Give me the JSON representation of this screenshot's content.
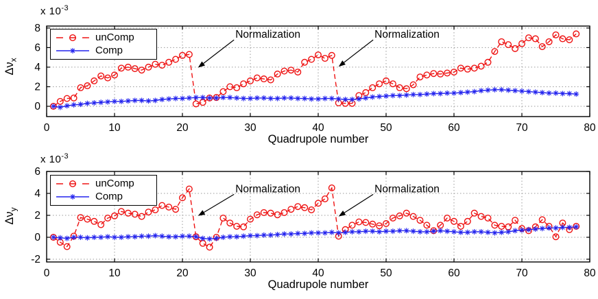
{
  "figure_title": "",
  "colors": {
    "uncomp": "#ee1111",
    "comp": "#2222ee",
    "grid": "#9a9a9a",
    "axis": "#000000",
    "annotation": "#000000",
    "background": "#ffffff"
  },
  "chart_data": [
    {
      "type": "line",
      "panel": "top",
      "xlabel": "Quadrupole number",
      "ylabel": {
        "base": "Δν",
        "sub": "x"
      },
      "exponent": {
        "base": "x 10",
        "power": "-3"
      },
      "xlim": [
        0,
        80
      ],
      "ylim": [
        -1.05,
        8.2
      ],
      "xticks": [
        0,
        10,
        20,
        30,
        40,
        50,
        60,
        70,
        80
      ],
      "yticks": [
        0,
        2,
        4,
        6,
        8
      ],
      "grid": true,
      "legend_position": "northwest",
      "x": [
        1,
        2,
        3,
        4,
        5,
        6,
        7,
        8,
        9,
        10,
        11,
        12,
        13,
        14,
        15,
        16,
        17,
        18,
        19,
        20,
        21,
        22,
        23,
        24,
        25,
        26,
        27,
        28,
        29,
        30,
        31,
        32,
        33,
        34,
        35,
        36,
        37,
        38,
        39,
        40,
        41,
        42,
        43,
        44,
        45,
        46,
        47,
        48,
        49,
        50,
        51,
        52,
        53,
        54,
        55,
        56,
        57,
        58,
        59,
        60,
        61,
        62,
        63,
        64,
        65,
        66,
        67,
        68,
        69,
        70,
        71,
        72,
        73,
        74,
        75,
        76,
        77,
        78
      ],
      "series": [
        {
          "name": "unComp",
          "color": "#ee1111",
          "line": "dashed",
          "marker": "circle",
          "values": [
            0,
            0.5,
            0.8,
            0.85,
            1.9,
            2.1,
            2.6,
            3.1,
            2.9,
            3.2,
            3.9,
            4.0,
            3.85,
            3.7,
            4.0,
            4.3,
            4.2,
            4.5,
            4.8,
            5.2,
            5.3,
            0.25,
            0.4,
            0.85,
            0.9,
            1.5,
            2.0,
            1.9,
            2.3,
            2.6,
            2.9,
            2.8,
            2.7,
            3.3,
            3.6,
            3.7,
            3.5,
            4.5,
            4.8,
            5.25,
            4.9,
            5.2,
            0.35,
            0.3,
            0.3,
            1.1,
            1.4,
            1.9,
            2.3,
            2.6,
            2.3,
            1.9,
            1.8,
            2.2,
            3.0,
            3.2,
            3.35,
            3.3,
            3.4,
            3.5,
            3.9,
            3.8,
            3.9,
            4.1,
            4.5,
            5.6,
            6.6,
            6.3,
            5.9,
            6.4,
            7.0,
            6.9,
            6.1,
            6.6,
            7.3,
            6.9,
            6.8,
            7.4
          ]
        },
        {
          "name": "Comp",
          "color": "#2222ee",
          "line": "solid",
          "marker": "asterisk",
          "values": [
            0,
            -0.1,
            0.05,
            0.15,
            0.2,
            0.3,
            0.35,
            0.4,
            0.45,
            0.5,
            0.5,
            0.55,
            0.6,
            0.6,
            0.55,
            0.6,
            0.7,
            0.75,
            0.8,
            0.8,
            0.85,
            0.9,
            0.9,
            0.85,
            0.85,
            0.9,
            0.9,
            0.85,
            0.8,
            0.8,
            0.85,
            0.85,
            0.8,
            0.8,
            0.85,
            0.85,
            0.8,
            0.8,
            0.75,
            0.75,
            0.8,
            0.8,
            0.75,
            0.7,
            0.7,
            0.75,
            0.85,
            0.95,
            1.0,
            1.05,
            1.1,
            1.1,
            1.15,
            1.2,
            1.2,
            1.25,
            1.3,
            1.3,
            1.35,
            1.35,
            1.4,
            1.45,
            1.5,
            1.6,
            1.65,
            1.7,
            1.7,
            1.65,
            1.6,
            1.55,
            1.5,
            1.45,
            1.4,
            1.35,
            1.35,
            1.3,
            1.3,
            1.25
          ]
        }
      ],
      "annotations": [
        {
          "text": "Normalization",
          "text_at": [
            27.8,
            7.0
          ],
          "tip": [
            22.3,
            3.95
          ]
        },
        {
          "text": "Normalization",
          "text_at": [
            48.3,
            7.0
          ],
          "tip": [
            43.0,
            4.05
          ]
        }
      ]
    },
    {
      "type": "line",
      "panel": "bottom",
      "xlabel": "Quadrupole number",
      "ylabel": {
        "base": "Δν",
        "sub": "y"
      },
      "exponent": {
        "base": "x 10",
        "power": "-3"
      },
      "xlim": [
        0,
        80
      ],
      "ylim": [
        -2.25,
        6
      ],
      "xticks": [
        0,
        10,
        20,
        30,
        40,
        50,
        60,
        70,
        80
      ],
      "yticks": [
        -2,
        0,
        2,
        4,
        6
      ],
      "grid": true,
      "legend_position": "northwest",
      "x": [
        1,
        2,
        3,
        4,
        5,
        6,
        7,
        8,
        9,
        10,
        11,
        12,
        13,
        14,
        15,
        16,
        17,
        18,
        19,
        20,
        21,
        22,
        23,
        24,
        25,
        26,
        27,
        28,
        29,
        30,
        31,
        32,
        33,
        34,
        35,
        36,
        37,
        38,
        39,
        40,
        41,
        42,
        43,
        44,
        45,
        46,
        47,
        48,
        49,
        50,
        51,
        52,
        53,
        54,
        55,
        56,
        57,
        58,
        59,
        60,
        61,
        62,
        63,
        64,
        65,
        66,
        67,
        68,
        69,
        70,
        71,
        72,
        73,
        74,
        75,
        76,
        77,
        78
      ],
      "series": [
        {
          "name": "unComp",
          "color": "#ee1111",
          "line": "dashed",
          "marker": "circle",
          "values": [
            0,
            -0.45,
            -0.85,
            0.1,
            1.8,
            1.65,
            1.45,
            1.15,
            1.75,
            1.95,
            2.35,
            2.2,
            2.1,
            1.9,
            2.3,
            2.5,
            2.9,
            2.75,
            2.55,
            3.6,
            4.4,
            0.05,
            -0.55,
            -0.9,
            0.0,
            1.75,
            1.3,
            1.0,
            0.95,
            1.65,
            2.05,
            2.25,
            2.2,
            2.05,
            2.25,
            2.55,
            2.8,
            2.7,
            2.5,
            3.1,
            3.5,
            4.5,
            0.1,
            0.7,
            1.1,
            1.4,
            1.35,
            1.2,
            1.05,
            1.25,
            1.75,
            1.95,
            2.2,
            1.9,
            1.55,
            1.1,
            0.6,
            1.1,
            1.75,
            1.45,
            1.0,
            1.45,
            2.2,
            1.9,
            1.75,
            1.1,
            1.0,
            0.95,
            1.55,
            0.8,
            0.6,
            0.95,
            1.6,
            1.0,
            0.05,
            1.3,
            0.7,
            1.0
          ]
        },
        {
          "name": "Comp",
          "color": "#2222ee",
          "line": "solid",
          "marker": "asterisk",
          "values": [
            0,
            -0.05,
            -0.1,
            0,
            0,
            -0.05,
            0,
            0,
            0.05,
            0,
            0,
            0.05,
            0.05,
            0.1,
            0.1,
            0.15,
            0.1,
            0.05,
            0.05,
            0.1,
            0.1,
            0.05,
            -0.1,
            -0.15,
            -0.1,
            0,
            0.05,
            0.05,
            0.1,
            0.15,
            0.15,
            0.2,
            0.2,
            0.25,
            0.3,
            0.3,
            0.35,
            0.35,
            0.4,
            0.4,
            0.4,
            0.45,
            0.4,
            0.45,
            0.5,
            0.5,
            0.55,
            0.55,
            0.5,
            0.55,
            0.55,
            0.6,
            0.6,
            0.55,
            0.5,
            0.5,
            0.55,
            0.6,
            0.55,
            0.5,
            0.45,
            0.45,
            0.5,
            0.5,
            0.45,
            0.4,
            0.45,
            0.5,
            0.6,
            0.65,
            0.7,
            0.75,
            0.8,
            0.85,
            0.85,
            0.9,
            0.9,
            0.95
          ]
        }
      ],
      "annotations": [
        {
          "text": "Normalization",
          "text_at": [
            27.8,
            4.1
          ],
          "tip": [
            22.3,
            1.95
          ]
        },
        {
          "text": "Normalization",
          "text_at": [
            48.3,
            4.1
          ],
          "tip": [
            43.0,
            1.9
          ]
        }
      ]
    }
  ]
}
